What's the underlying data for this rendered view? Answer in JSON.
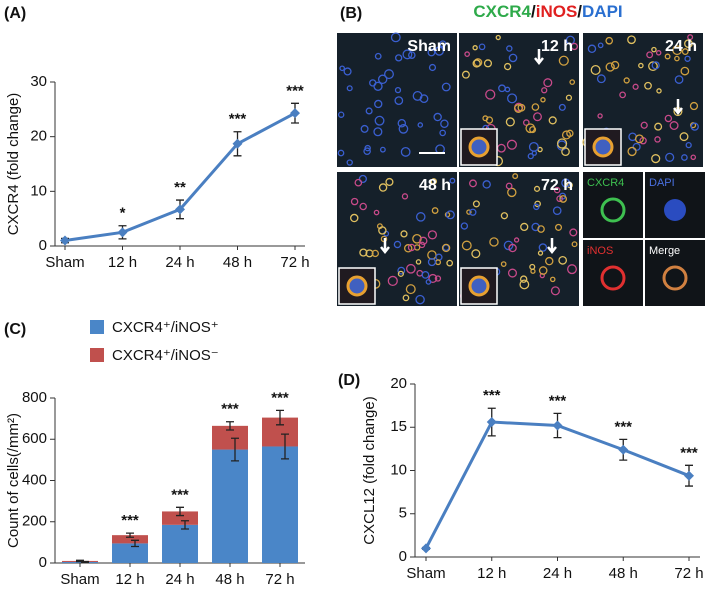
{
  "chart_data": [
    {
      "type": "line",
      "label": "(A)",
      "ylabel": "CXCR4 (fold change)",
      "color": "#4a7fc1",
      "categories": [
        "Sham",
        "12 h",
        "24 h",
        "48 h",
        "72 h"
      ],
      "values": [
        1,
        2.5,
        6.7,
        18.7,
        24.3
      ],
      "errors": [
        0.4,
        1.2,
        1.7,
        2.2,
        1.8
      ],
      "annotations": [
        null,
        "*",
        "**",
        "***",
        "***"
      ],
      "ylim": [
        0,
        30
      ],
      "yticks": [
        0,
        10,
        20,
        30
      ]
    },
    {
      "type": "bar",
      "label": "(C)",
      "ylabel": "Count of cells(/mm²)",
      "stacked": true,
      "categories": [
        "Sham",
        "12 h",
        "24 h",
        "48 h",
        "72 h"
      ],
      "series": [
        {
          "name": "CXCR4⁺/iNOS⁺",
          "color": "#4a86c8",
          "values": [
            5,
            95,
            185,
            550,
            565
          ],
          "errors": [
            2,
            15,
            20,
            55,
            60
          ]
        },
        {
          "name": "CXCR4⁺/iNOS⁻",
          "color": "#c0504d",
          "values": [
            5,
            40,
            65,
            115,
            140
          ],
          "errors": [
            3,
            10,
            20,
            20,
            35
          ]
        }
      ],
      "annotations": [
        null,
        "***",
        "***",
        "***",
        "***"
      ],
      "ylim": [
        0,
        800
      ],
      "yticks": [
        0,
        200,
        400,
        600,
        800
      ]
    },
    {
      "type": "line",
      "label": "(D)",
      "ylabel": "CXCL12 (fold change)",
      "color": "#4a7fc1",
      "categories": [
        "Sham",
        "12 h",
        "24 h",
        "48 h",
        "72 h"
      ],
      "values": [
        1,
        15.6,
        15.2,
        12.4,
        9.4
      ],
      "errors": [
        0.1,
        1.6,
        1.4,
        1.2,
        1.2
      ],
      "annotations": [
        null,
        "***",
        "***",
        "***",
        "***"
      ],
      "ylim": [
        0,
        20
      ],
      "yticks": [
        0,
        5,
        10,
        15,
        20
      ]
    }
  ],
  "panel_b": {
    "label": "(B)",
    "title": [
      "CXCR4",
      "/",
      "iNOS",
      "/",
      "DAPI"
    ],
    "tiles": [
      "Sham",
      "12 h",
      "24 h",
      "48 h",
      "72 h"
    ],
    "channels": [
      "CXCR4",
      "DAPI",
      "iNOS",
      "Merge"
    ]
  }
}
